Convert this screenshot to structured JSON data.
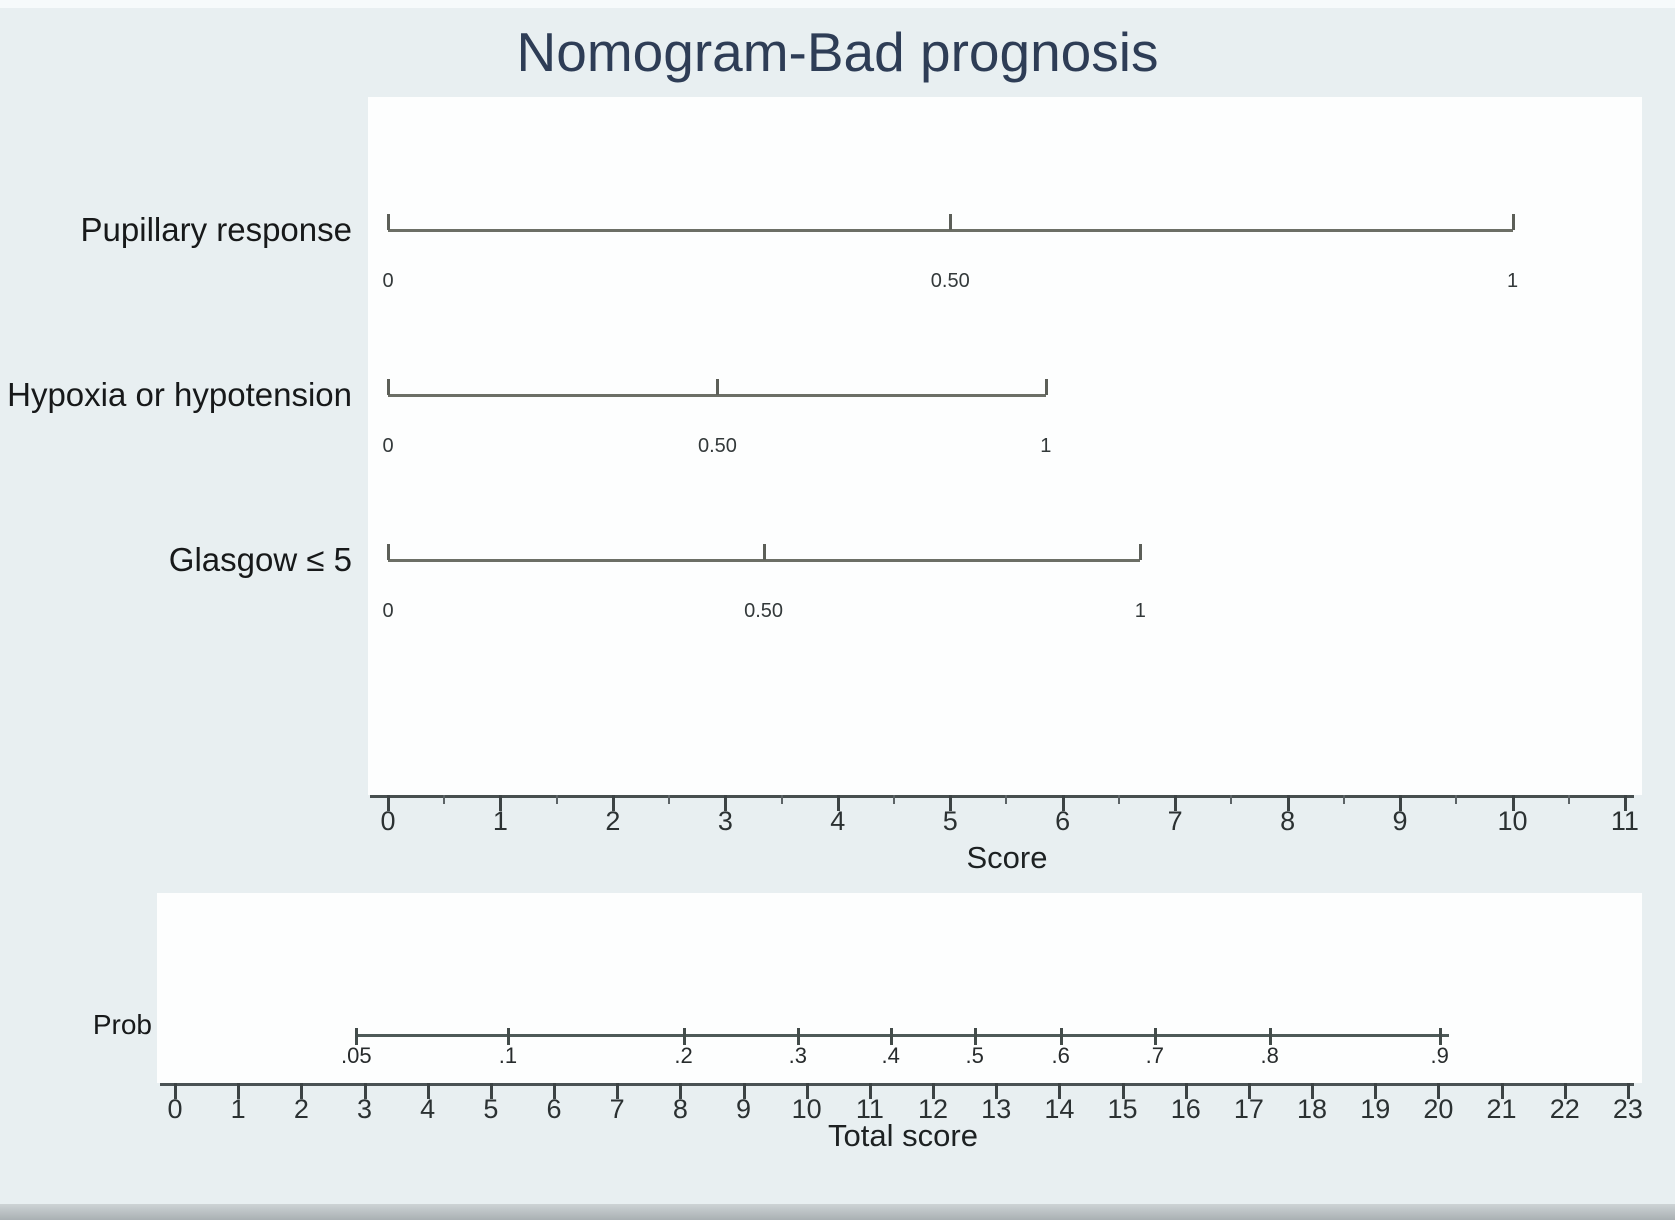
{
  "title": "Nomogram-Bad prognosis",
  "colors": {
    "background": "#e8eff1",
    "panel": "#fdfefe",
    "title_text": "#2e3d56",
    "row_line": "#6c6f66",
    "axis_line": "#474f4f",
    "prob_line": "#4e5a58",
    "label_text": "#17191a",
    "tick_text": "#2b3132"
  },
  "chart_data": {
    "type": "nomogram",
    "title": "Nomogram-Bad prognosis",
    "upper": {
      "axis_label": "Score",
      "axis_range": [
        0,
        11
      ],
      "axis_major_ticks": [
        "0",
        "1",
        "2",
        "3",
        "4",
        "5",
        "6",
        "7",
        "8",
        "9",
        "10",
        "11"
      ],
      "axis_minor_step": 0.5,
      "rows": [
        {
          "label": "Pupillary response",
          "max_score": 10.0,
          "ticks": [
            {
              "label": "0",
              "score": 0
            },
            {
              "label": "0.50",
              "score": 5.0
            },
            {
              "label": "1",
              "score": 10.0
            }
          ]
        },
        {
          "label": "Hypoxia or hypotension",
          "max_score": 5.85,
          "ticks": [
            {
              "label": "0",
              "score": 0
            },
            {
              "label": "0.50",
              "score": 2.93
            },
            {
              "label": "1",
              "score": 5.85
            }
          ]
        },
        {
          "label": "Glasgow ≤ 5",
          "max_score": 6.69,
          "ticks": [
            {
              "label": "0",
              "score": 0
            },
            {
              "label": "0.50",
              "score": 3.34
            },
            {
              "label": "1",
              "score": 6.69
            }
          ]
        }
      ]
    },
    "lower": {
      "row_label": "Prob",
      "axis_label": "Total score",
      "axis_range": [
        0,
        23
      ],
      "axis_major_ticks": [
        "0",
        "1",
        "2",
        "3",
        "4",
        "5",
        "6",
        "7",
        "8",
        "9",
        "10",
        "11",
        "12",
        "13",
        "14",
        "15",
        "16",
        "17",
        "18",
        "19",
        "20",
        "21",
        "22",
        "23"
      ],
      "prob_ticks": [
        {
          "label": ".05",
          "total_score": 2.87
        },
        {
          "label": ".1",
          "total_score": 5.27
        },
        {
          "label": ".2",
          "total_score": 8.05
        },
        {
          "label": ".3",
          "total_score": 9.86
        },
        {
          "label": ".4",
          "total_score": 11.33
        },
        {
          "label": ".5",
          "total_score": 12.66
        },
        {
          "label": ".6",
          "total_score": 14.02
        },
        {
          "label": ".7",
          "total_score": 15.51
        },
        {
          "label": ".8",
          "total_score": 17.33
        },
        {
          "label": ".9",
          "total_score": 20.02
        }
      ]
    }
  }
}
